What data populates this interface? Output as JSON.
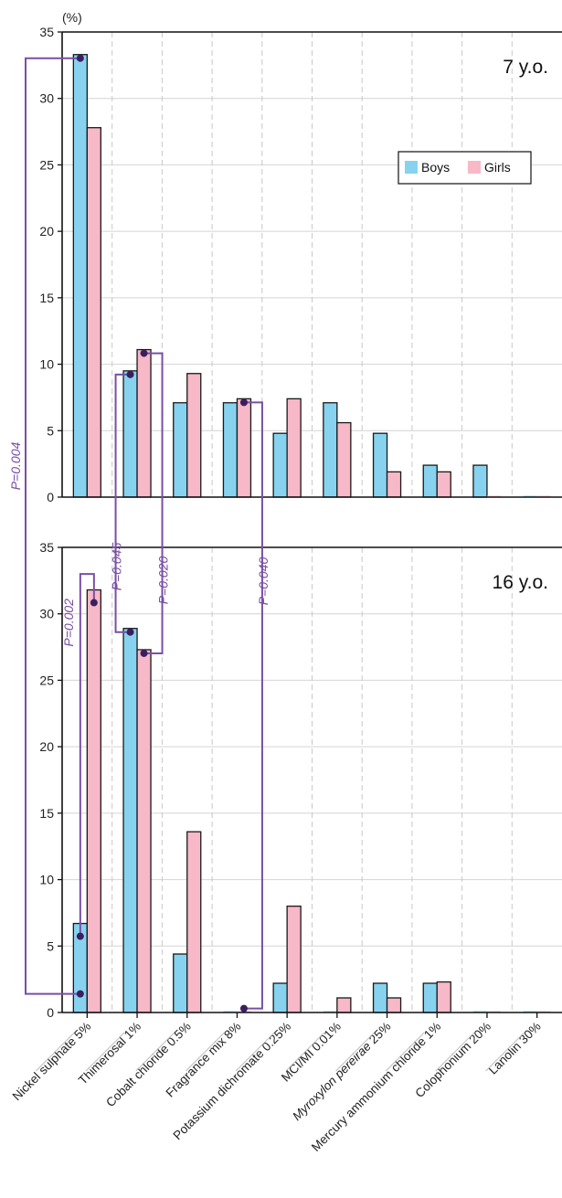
{
  "chart_data": {
    "type": "bar",
    "y_unit": "(%)",
    "categories": [
      "Nickel sulphate 5%",
      "Thimerosal 1%",
      "Cobalt chloride 0.5%",
      "Fragrance mix 8%",
      "Potassium dichromate 0.25%",
      "MCI/MI 0.01%",
      "Myroxylon pereirae 25%",
      "Mercury ammonium chloride 1%",
      "Colophonium 20%",
      "Lanolin 30%"
    ],
    "italic_categories": [
      "Myroxylon pereirae"
    ],
    "legend": {
      "position": "top-right",
      "entries": [
        "Boys",
        "Girls"
      ]
    },
    "colors": {
      "Boys": "#87d3ef",
      "Girls": "#f7b8c8",
      "bracket": "#7a4fa6",
      "dot": "#3a1f5e"
    },
    "grid": true,
    "panels": [
      {
        "label": "7 y.o.",
        "ylim": [
          0,
          35
        ],
        "yticks": [
          0,
          5,
          10,
          15,
          20,
          25,
          30,
          35
        ],
        "series": [
          {
            "name": "Boys",
            "values": [
              33.3,
              9.5,
              7.1,
              7.1,
              4.8,
              7.1,
              4.8,
              2.4,
              2.4,
              0.1
            ]
          },
          {
            "name": "Girls",
            "values": [
              27.8,
              11.1,
              9.3,
              7.4,
              7.4,
              5.6,
              1.9,
              1.9,
              0.1,
              0.1
            ]
          }
        ]
      },
      {
        "label": "16 y.o.",
        "ylim": [
          0,
          35
        ],
        "yticks": [
          0,
          5,
          10,
          15,
          20,
          25,
          30,
          35
        ],
        "series": [
          {
            "name": "Boys",
            "values": [
              6.7,
              28.9,
              4.4,
              0.1,
              2.2,
              0.1,
              2.2,
              2.2,
              0.1,
              0.1
            ]
          },
          {
            "name": "Girls",
            "values": [
              31.8,
              27.3,
              13.6,
              0.1,
              8.0,
              1.1,
              1.1,
              2.3,
              0.1,
              0.1
            ]
          }
        ]
      }
    ],
    "comparisons": [
      {
        "label": "P=0.004",
        "category": "Nickel sulphate 5%",
        "series": "Boys",
        "from": "7 y.o.",
        "to": "16 y.o."
      },
      {
        "label": "P=0.002",
        "category": "Nickel sulphate 5%",
        "between": "16 y.o. Boys vs Girls"
      },
      {
        "label": "P=0.045",
        "category": "Thimerosal 1%",
        "series": "Boys",
        "from": "7 y.o.",
        "to": "16 y.o."
      },
      {
        "label": "P=0.020",
        "category": "Thimerosal 1%",
        "series": "Girls",
        "from": "7 y.o.",
        "to": "16 y.o."
      },
      {
        "label": "P=0.040",
        "category": "Fragrance mix 8%",
        "series": "Girls",
        "from": "7 y.o.",
        "to": "16 y.o."
      }
    ]
  }
}
